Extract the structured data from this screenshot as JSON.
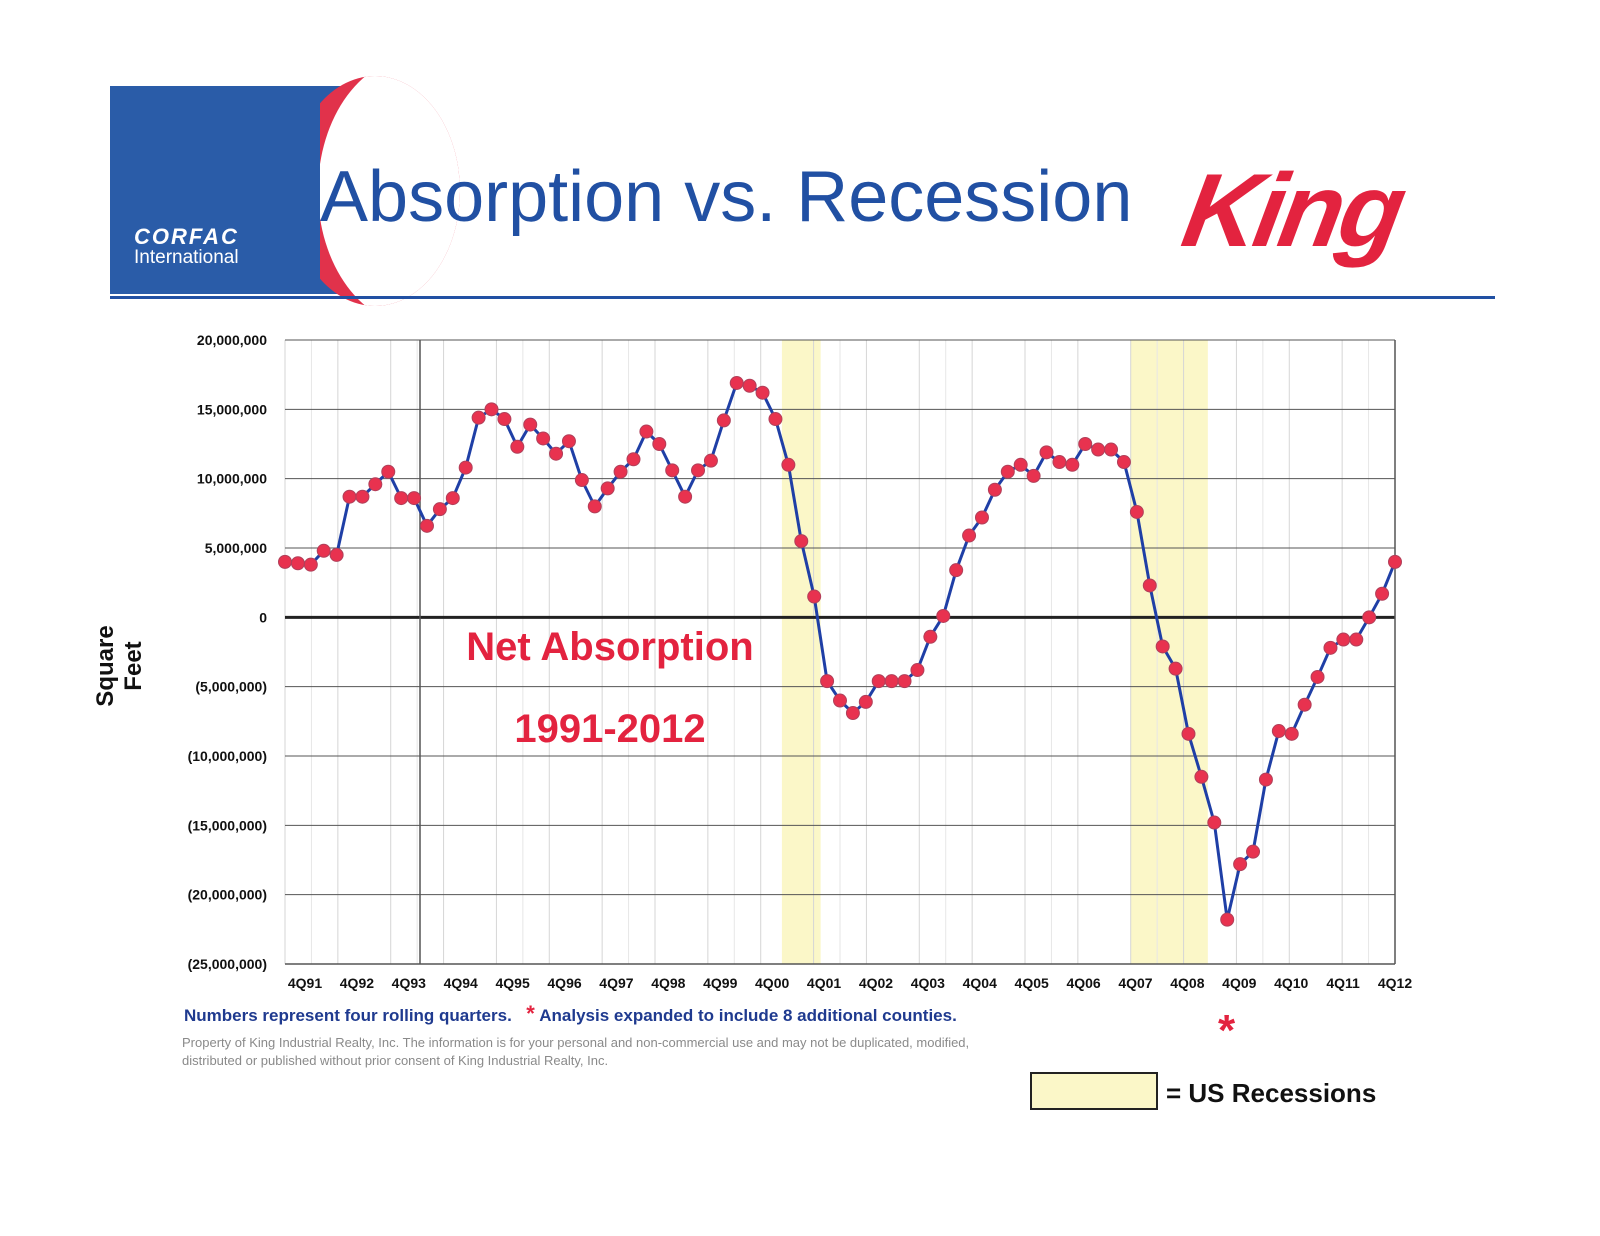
{
  "header": {
    "title": "Absorption vs. Recession",
    "left_logo": {
      "name": "CORFAC",
      "sub": "International"
    },
    "right_logo": "King"
  },
  "chart_data": {
    "type": "line",
    "ylabel": "Square Feet",
    "ylim": [
      -25000000,
      20000000
    ],
    "yticks": [
      20000000,
      15000000,
      10000000,
      5000000,
      0,
      -5000000,
      -10000000,
      -15000000,
      -20000000,
      -25000000
    ],
    "ytick_labels": [
      "20,000,000",
      "15,000,000",
      "10,000,000",
      "5,000,000",
      "0",
      "(5,000,000)",
      "(10,000,000)",
      "(15,000,000)",
      "(20,000,000)",
      "(25,000,000)"
    ],
    "xtick_labels": [
      "4Q91",
      "4Q92",
      "4Q93",
      "4Q94",
      "4Q95",
      "4Q96",
      "4Q97",
      "4Q98",
      "4Q99",
      "4Q00",
      "4Q01",
      "4Q02",
      "4Q03",
      "4Q04",
      "4Q05",
      "4Q06",
      "4Q07",
      "4Q08",
      "4Q09",
      "4Q10",
      "4Q11",
      "4Q12"
    ],
    "annotation_lines": [
      "Net Absorption",
      "1991-2012"
    ],
    "series": [
      {
        "color": "#1f3fa6",
        "marker_color": "#e8324f",
        "values": [
          4000000,
          3900000,
          3800000,
          4800000,
          4500000,
          8700000,
          8700000,
          9600000,
          10500000,
          8600000,
          8600000,
          6600000,
          7800000,
          8600000,
          10800000,
          14400000,
          15000000,
          14300000,
          12300000,
          13900000,
          12900000,
          11800000,
          12700000,
          9900000,
          8000000,
          9300000,
          10500000,
          11400000,
          13400000,
          12500000,
          10600000,
          8700000,
          10600000,
          11300000,
          14200000,
          16900000,
          16700000,
          16200000,
          14300000,
          11000000,
          5500000,
          1500000,
          -4600000,
          -6000000,
          -6900000,
          -6100000,
          -4600000,
          -4600000,
          -4600000,
          -3800000,
          -1400000,
          100000,
          3400000,
          5900000,
          7200000,
          9200000,
          10500000,
          11000000,
          10200000,
          11900000,
          11200000,
          11000000,
          12500000,
          12100000,
          12100000,
          11200000,
          7600000,
          2300000,
          -2100000,
          -3700000,
          -8400000,
          -11500000,
          -14800000,
          -21800000,
          -17800000,
          -16900000,
          -11700000,
          -8200000,
          -8400000,
          -6300000,
          -4300000,
          -2200000,
          -1600000,
          -1600000,
          0,
          1700000,
          4000000
        ]
      }
    ],
    "recessions": [
      {
        "from_index": 38.5,
        "to_index": 41.5
      },
      {
        "from_index": 65.5,
        "to_index": 71.5
      }
    ],
    "recession_color": "#fbf7c8"
  },
  "footer": {
    "note1": "Numbers represent four rolling quarters.",
    "star": "*",
    "note2": "Analysis expanded to include 8 additional counties.",
    "disclaimer": "Property of King Industrial Realty, Inc. The information is for your personal and non-commercial use and may not be duplicated, modified, distributed or published without prior consent of King Industrial Realty, Inc.",
    "legend_star": "*",
    "legend_label": "= US Recessions"
  }
}
